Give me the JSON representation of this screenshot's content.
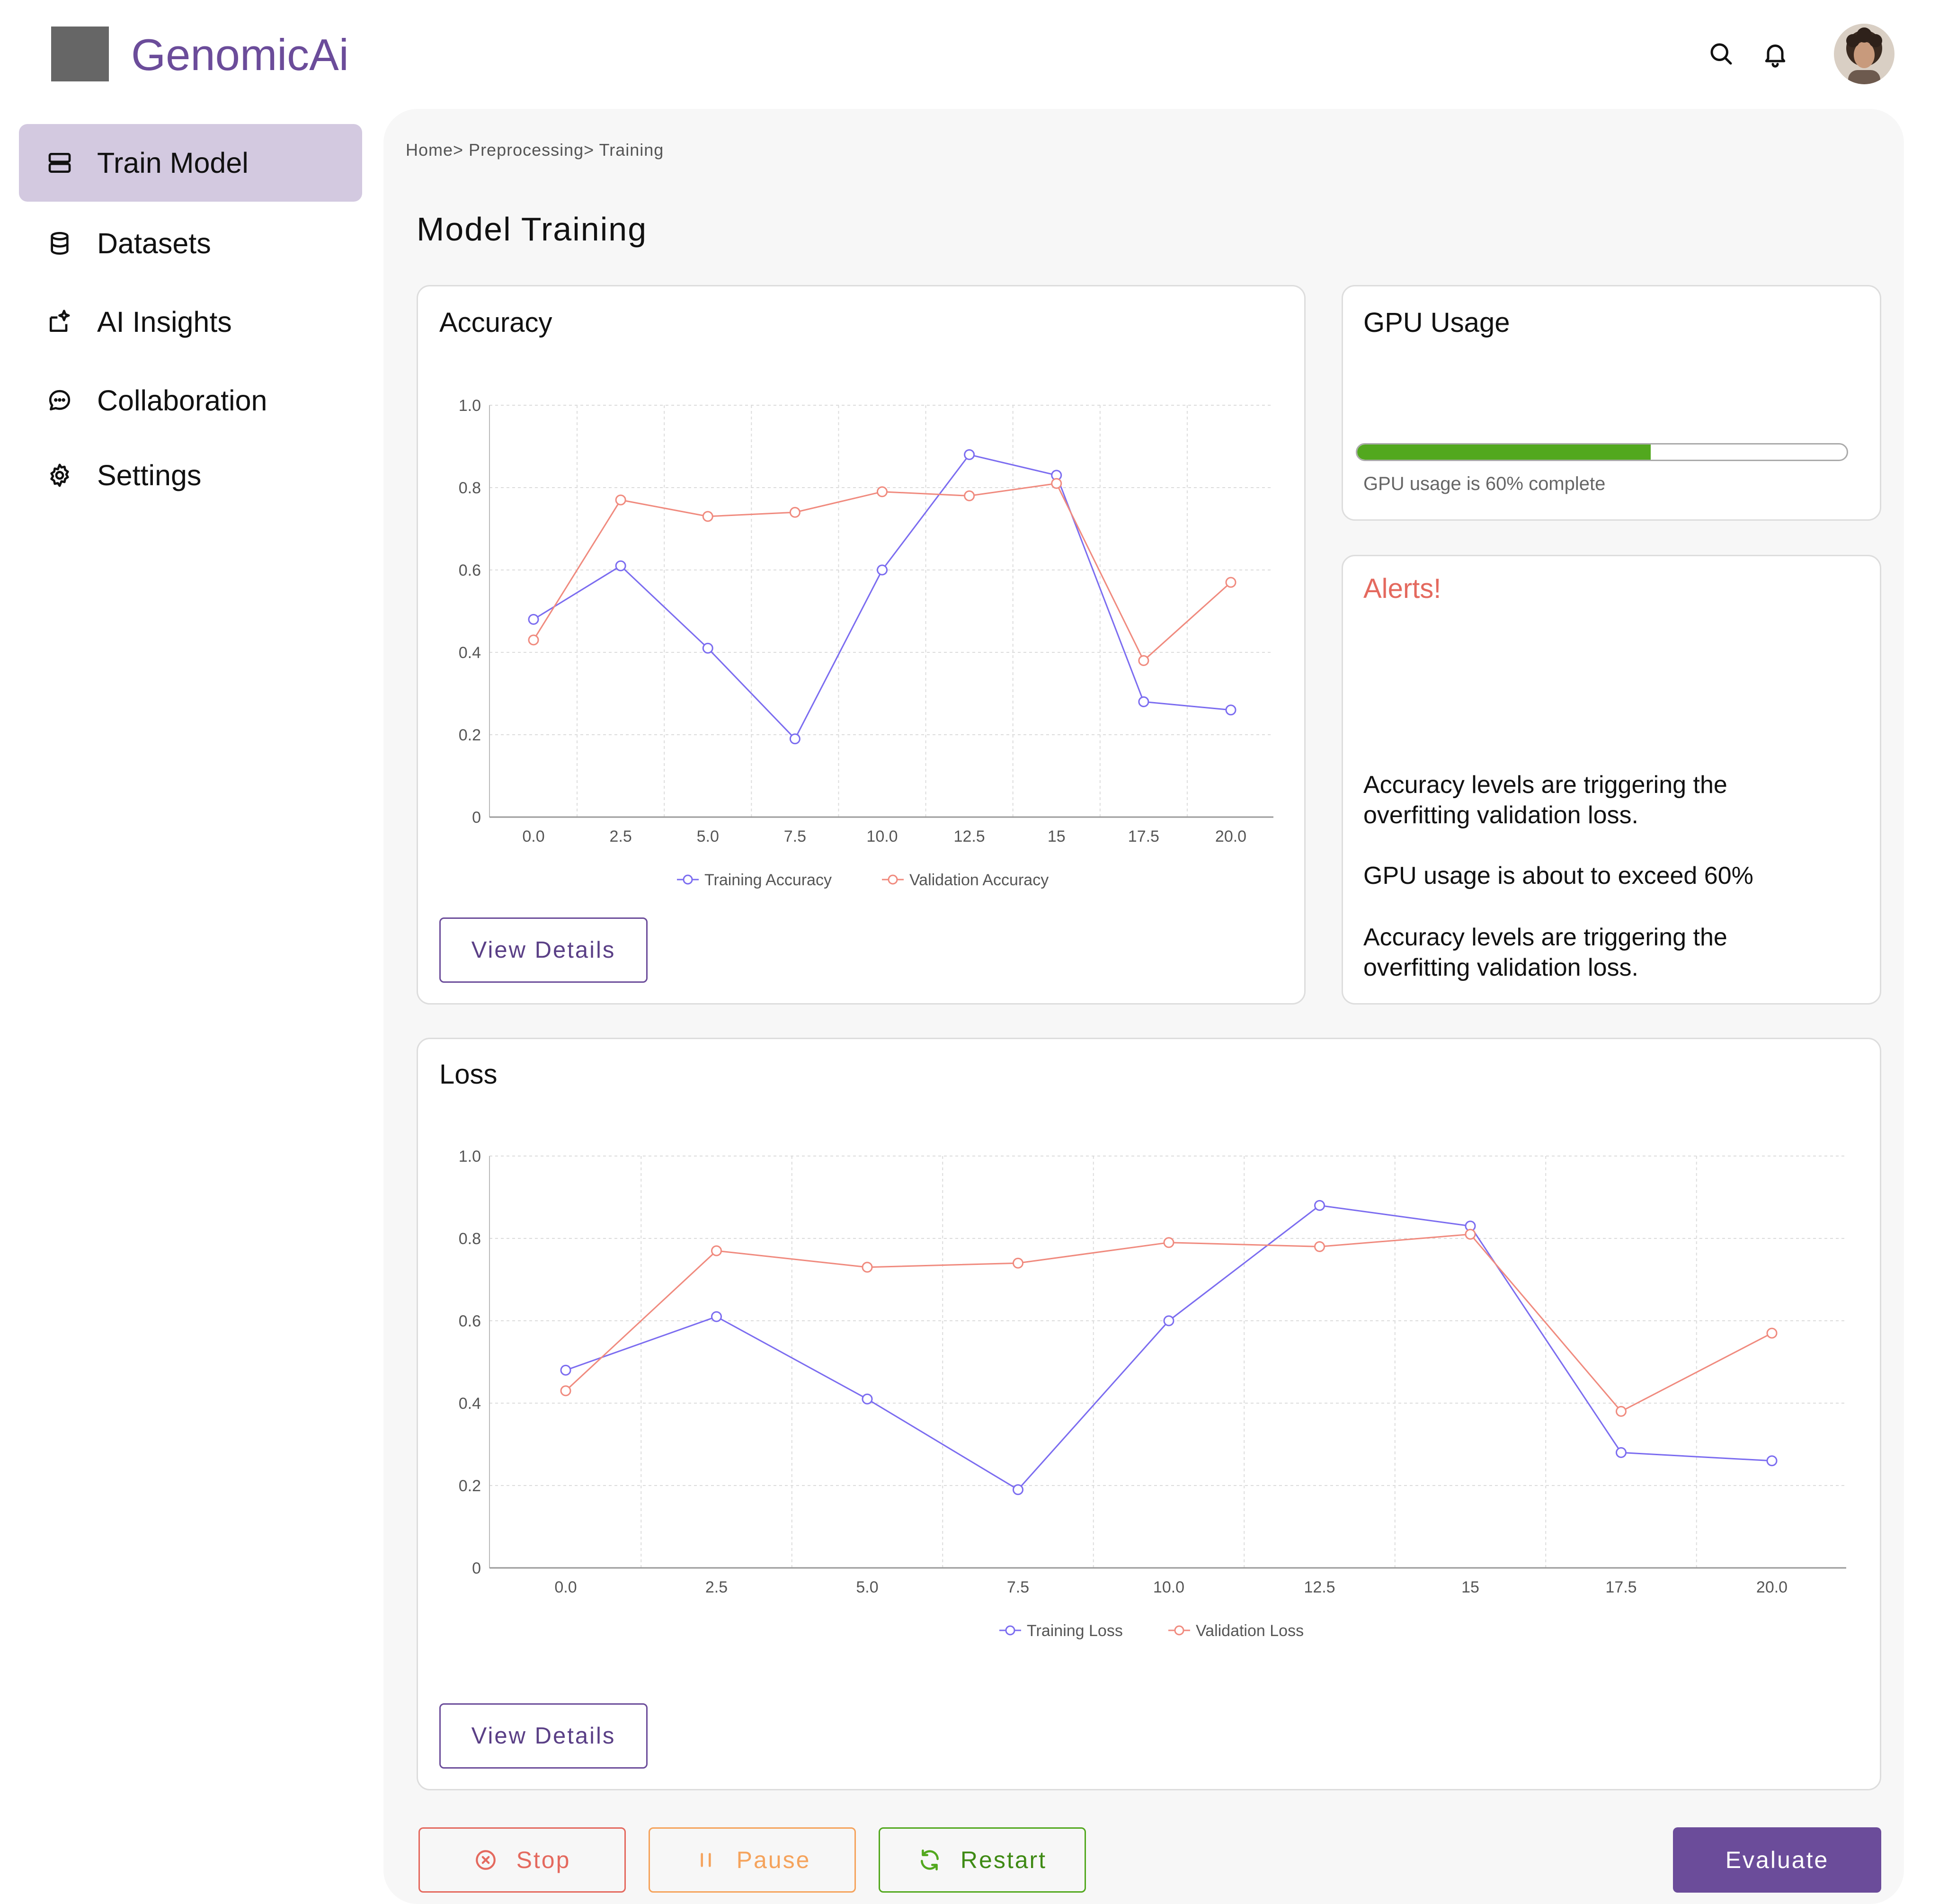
{
  "header": {
    "brand": "GenomicAi",
    "icons": [
      "search-icon",
      "bell-icon"
    ],
    "avatar": "user-avatar"
  },
  "sidebar": {
    "items": [
      {
        "label": "Train Model",
        "icon": "server-icon",
        "active": true
      },
      {
        "label": "Datasets",
        "icon": "database-icon",
        "active": false
      },
      {
        "label": "AI Insights",
        "icon": "insights-icon",
        "active": false
      },
      {
        "label": "Collaboration",
        "icon": "chat-icon",
        "active": false
      },
      {
        "label": "Settings",
        "icon": "gear-icon",
        "active": false
      }
    ]
  },
  "main": {
    "breadcrumb": "Home> Preprocessing> Training",
    "title": "Model Training",
    "accuracy_card": {
      "title": "Accuracy",
      "button": "View Details"
    },
    "loss_card": {
      "title": "Loss",
      "button": "View Details"
    },
    "gpu_card": {
      "title": "GPU Usage",
      "caption": "GPU usage is 60% complete",
      "progress": 0.6
    },
    "alerts_card": {
      "title": "Alerts!",
      "messages": [
        "Accuracy levels are triggering the overfitting validation loss.",
        "GPU usage is about to exceed 60%",
        "Accuracy levels are triggering the overfitting validation loss."
      ]
    },
    "actions": {
      "stop": "Stop",
      "pause": "Pause",
      "restart": "Restart",
      "evaluate": "Evaluate"
    }
  },
  "colors": {
    "brand": "#6b4c9a",
    "training": "#7b6cf0",
    "validation": "#f08a7e",
    "stop": "#e4695e",
    "pause": "#f5a35c",
    "restart": "#52a81e",
    "progress": "#52a81e"
  },
  "chart_data": [
    {
      "type": "line",
      "title": "Accuracy",
      "categories": [
        "0.0",
        "2.5",
        "5.0",
        "7.5",
        "10.0",
        "12.5",
        "15",
        "17.5",
        "20.0"
      ],
      "yticks": [
        "0",
        "0.2",
        "0.4",
        "0.6",
        "0.8",
        "1.0"
      ],
      "ylim": [
        0,
        1
      ],
      "grid": true,
      "legend": "bottom-center",
      "series": [
        {
          "name": "Training Accuracy",
          "values": [
            0.48,
            0.61,
            0.41,
            0.19,
            0.6,
            0.88,
            0.83,
            0.28,
            0.26
          ]
        },
        {
          "name": "Validation Accuracy",
          "values": [
            0.43,
            0.77,
            0.73,
            0.74,
            0.79,
            0.78,
            0.81,
            0.38,
            0.57
          ]
        }
      ]
    },
    {
      "type": "line",
      "title": "Loss",
      "categories": [
        "0.0",
        "2.5",
        "5.0",
        "7.5",
        "10.0",
        "12.5",
        "15",
        "17.5",
        "20.0"
      ],
      "yticks": [
        "0",
        "0.2",
        "0.4",
        "0.6",
        "0.8",
        "1.0"
      ],
      "ylim": [
        0,
        1
      ],
      "grid": true,
      "legend": "bottom-center",
      "series": [
        {
          "name": "Training Loss",
          "values": [
            0.48,
            0.61,
            0.41,
            0.19,
            0.6,
            0.88,
            0.83,
            0.28,
            0.26
          ]
        },
        {
          "name": "Validation Loss",
          "values": [
            0.43,
            0.77,
            0.73,
            0.74,
            0.79,
            0.78,
            0.81,
            0.38,
            0.57
          ]
        }
      ]
    }
  ]
}
